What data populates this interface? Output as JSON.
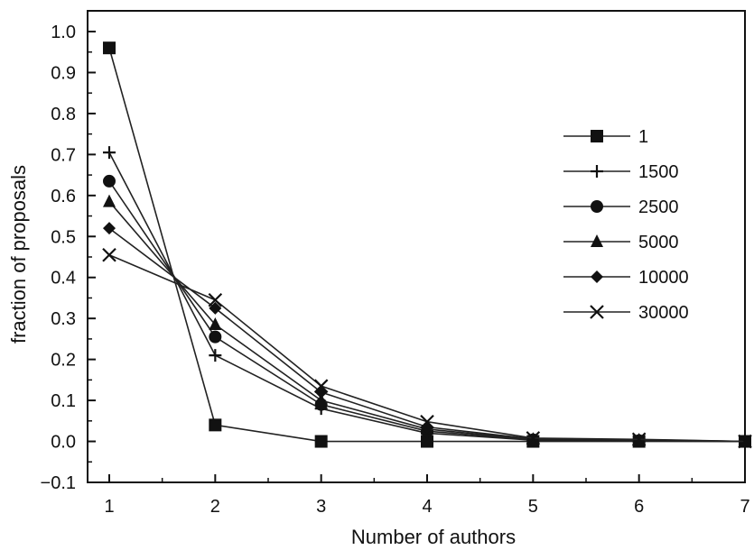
{
  "chart_data": {
    "type": "line",
    "xlabel": "Number of authors",
    "ylabel": "fraction of proposals",
    "xlim": [
      1,
      7
    ],
    "ylim": [
      -0.1,
      1.0
    ],
    "xticks": [
      "1",
      "2",
      "3",
      "4",
      "5",
      "6",
      "7"
    ],
    "yticks": [
      "−0.1",
      "0.0",
      "0.1",
      "0.2",
      "0.3",
      "0.4",
      "0.5",
      "0.6",
      "0.7",
      "0.8",
      "0.9",
      "1.0"
    ],
    "grid": false,
    "legend_position": "right",
    "x": [
      1,
      2,
      3,
      4,
      5,
      6,
      7
    ],
    "series": [
      {
        "name": "1",
        "marker": "square",
        "values": [
          0.96,
          0.04,
          0.0,
          0.0,
          0.0,
          0.0,
          0.0
        ]
      },
      {
        "name": "1500",
        "marker": "plus",
        "values": [
          0.705,
          0.21,
          0.08,
          0.02,
          0.003,
          0.001,
          0.0
        ]
      },
      {
        "name": "2500",
        "marker": "circle",
        "values": [
          0.635,
          0.255,
          0.09,
          0.025,
          0.004,
          0.002,
          0.0
        ]
      },
      {
        "name": "5000",
        "marker": "triangle",
        "values": [
          0.585,
          0.285,
          0.1,
          0.03,
          0.005,
          0.003,
          0.0
        ]
      },
      {
        "name": "10000",
        "marker": "diamond",
        "values": [
          0.52,
          0.325,
          0.12,
          0.035,
          0.006,
          0.004,
          0.0
        ]
      },
      {
        "name": "30000",
        "marker": "cross",
        "values": [
          0.455,
          0.345,
          0.135,
          0.048,
          0.008,
          0.005,
          0.0
        ]
      }
    ]
  }
}
